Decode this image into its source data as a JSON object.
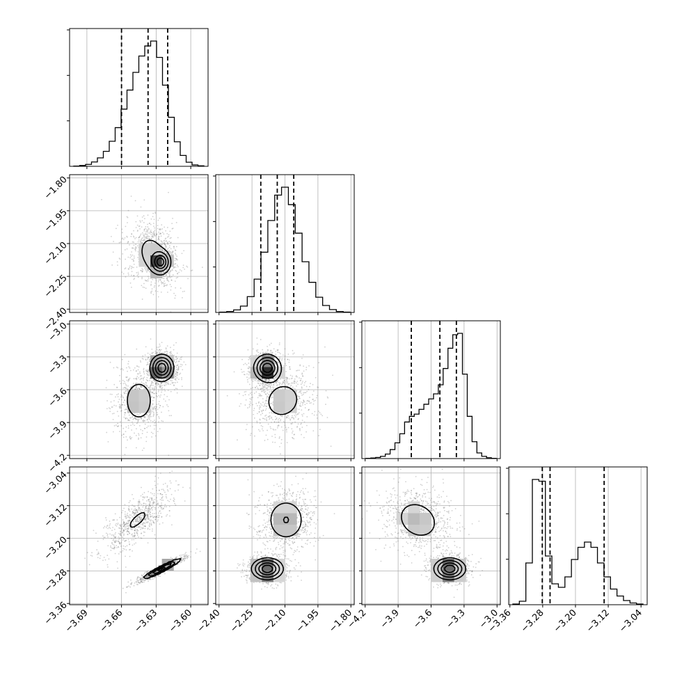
{
  "chart_data": {
    "type": "corner",
    "grid": true,
    "quantile_lines": "dashed",
    "axes": [
      {
        "ticks": [
          -3.69,
          -3.66,
          -3.63,
          -3.6
        ],
        "tick_labels": [
          "−3.69",
          "−3.66",
          "−3.63",
          "−3.60"
        ],
        "range": [
          -3.705,
          -3.585
        ]
      },
      {
        "ticks": [
          -2.4,
          -2.25,
          -2.1,
          -1.95,
          -1.8
        ],
        "tick_labels": [
          "−2.40",
          "−2.25",
          "−2.10",
          "−1.95",
          "−1.80"
        ],
        "range": [
          -2.415,
          -1.785
        ]
      },
      {
        "ticks": [
          -4.2,
          -3.9,
          -3.6,
          -3.3,
          -3.0
        ],
        "tick_labels": [
          "−4.2",
          "−3.9",
          "−3.6",
          "−3.3",
          "−3.0"
        ],
        "range": [
          -4.23,
          -2.97
        ]
      },
      {
        "ticks": [
          -3.36,
          -3.28,
          -3.2,
          -3.12,
          -3.04
        ],
        "tick_labels": [
          "−3.36",
          "−3.28",
          "−3.20",
          "−3.12",
          "−3.04"
        ],
        "range": [
          -3.363,
          -3.025
        ]
      }
    ],
    "histograms": [
      {
        "dim": 0,
        "quantiles": [
          -3.66,
          -3.637,
          -3.62
        ],
        "values": [
          1,
          3,
          7,
          16,
          31,
          55,
          92,
          142,
          210,
          280,
          345,
          405,
          442,
          460,
          400,
          298,
          180,
          90,
          40,
          15,
          5,
          2
        ]
      },
      {
        "dim": 1,
        "quantiles": [
          -2.21,
          -2.135,
          -2.06
        ],
        "values": [
          1,
          3,
          8,
          20,
          50,
          105,
          190,
          290,
          370,
          395,
          340,
          250,
          160,
          95,
          48,
          22,
          9,
          3,
          1
        ]
      },
      {
        "dim": 2,
        "quantiles": [
          -3.78,
          -3.52,
          -3.37
        ],
        "values": [
          1,
          2,
          4,
          8,
          16,
          32,
          56,
          88,
          130,
          150,
          158,
          175,
          193,
          212,
          230,
          262,
          320,
          392,
          440,
          445,
          300,
          150,
          60,
          20,
          8,
          3,
          1
        ]
      },
      {
        "dim": 3,
        "quantiles": [
          -3.281,
          -3.262,
          -3.13
        ],
        "values": [
          2,
          10,
          120,
          360,
          355,
          140,
          60,
          50,
          80,
          130,
          165,
          180,
          165,
          120,
          80,
          45,
          25,
          12,
          5,
          2
        ]
      }
    ],
    "pairs": [
      {
        "x": 0,
        "y": 1,
        "clusters": [
          {
            "cx": -3.633,
            "cy": -2.15,
            "sx": 0.0085,
            "sy": 0.06,
            "rho": -0.25,
            "w": 0.55
          },
          {
            "cx": -3.626,
            "cy": -2.185,
            "sx": 0.004,
            "sy": 0.025,
            "rho": 0.0,
            "w": 0.45
          }
        ]
      },
      {
        "x": 0,
        "y": 2,
        "clusters": [
          {
            "cx": -3.625,
            "cy": -3.4,
            "sx": 0.005,
            "sy": 0.06,
            "rho": 0.0,
            "w": 0.55
          },
          {
            "cx": -3.645,
            "cy": -3.7,
            "sx": 0.008,
            "sy": 0.12,
            "rho": 0.0,
            "w": 0.45
          }
        ]
      },
      {
        "x": 0,
        "y": 3,
        "clusters": [
          {
            "cx": -3.625,
            "cy": -3.275,
            "sx": 0.008,
            "sy": 0.012,
            "rho": 0.95,
            "w": 0.5
          },
          {
            "cx": -3.646,
            "cy": -3.155,
            "sx": 0.011,
            "sy": 0.03,
            "rho": 0.75,
            "w": 0.5
          }
        ]
      },
      {
        "x": 1,
        "y": 2,
        "clusters": [
          {
            "cx": -2.18,
            "cy": -3.4,
            "sx": 0.03,
            "sy": 0.06,
            "rho": 0.0,
            "w": 0.55
          },
          {
            "cx": -2.11,
            "cy": -3.7,
            "sx": 0.06,
            "sy": 0.12,
            "rho": 0.1,
            "w": 0.45
          }
        ]
      },
      {
        "x": 1,
        "y": 3,
        "clusters": [
          {
            "cx": -2.18,
            "cy": -3.275,
            "sx": 0.035,
            "sy": 0.013,
            "rho": 0.0,
            "w": 0.5
          },
          {
            "cx": -2.095,
            "cy": -3.155,
            "sx": 0.05,
            "sy": 0.03,
            "rho": 0.0,
            "w": 0.5
          }
        ]
      },
      {
        "x": 2,
        "y": 3,
        "clusters": [
          {
            "cx": -3.43,
            "cy": -3.275,
            "sx": 0.07,
            "sy": 0.013,
            "rho": 0.0,
            "w": 0.5
          },
          {
            "cx": -3.72,
            "cy": -3.155,
            "sx": 0.12,
            "sy": 0.03,
            "rho": -0.2,
            "w": 0.5
          }
        ]
      }
    ]
  }
}
